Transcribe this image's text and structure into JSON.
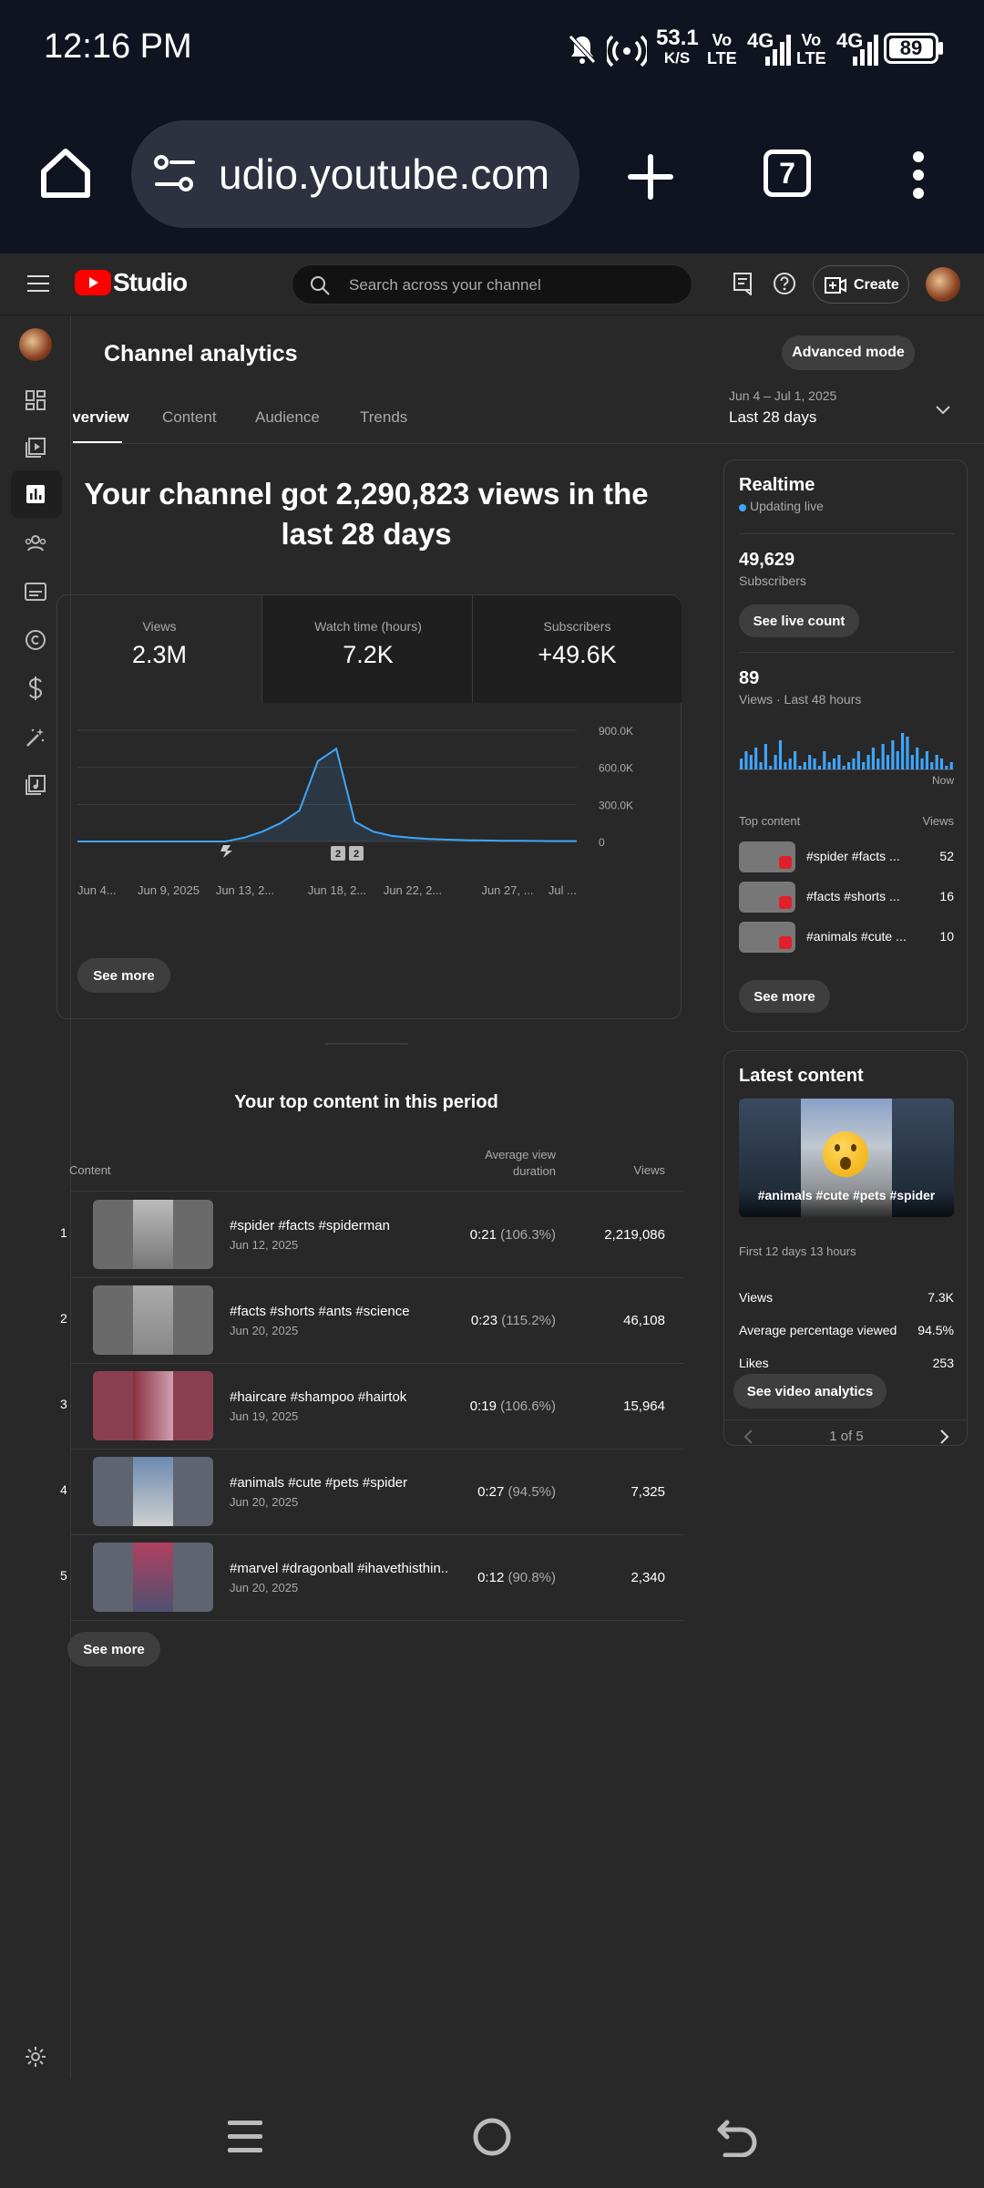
{
  "status_bar": {
    "time": "12:16 PM",
    "net_speed_value": "53.1",
    "net_speed_unit": "K/S",
    "battery": "89",
    "sim1_label": "Vo\nLTE",
    "sim2_label": "Vo\nLTE",
    "net1": "4G",
    "net2": "4G"
  },
  "browser": {
    "url": "udio.youtube.com",
    "tab_count": "7"
  },
  "header": {
    "logo_text": "Studio",
    "search_placeholder": "Search across your channel",
    "create_label": "Create"
  },
  "page": {
    "title": "Channel analytics",
    "advanced_mode_label": "Advanced mode",
    "tabs": [
      "Overview",
      "Content",
      "Audience",
      "Trends"
    ],
    "date_range": "Jun 4 – Jul 1, 2025",
    "date_label": "Last 28 days"
  },
  "summary": {
    "headline": "Your channel got 2,290,823 views in the last 28 days",
    "metrics": [
      {
        "label": "Views",
        "value": "2.3M"
      },
      {
        "label": "Watch time (hours)",
        "value": "7.2K"
      },
      {
        "label": "Subscribers",
        "value": "+49.6K"
      }
    ],
    "see_more": "See more"
  },
  "chart_data": {
    "type": "line",
    "x": [
      "Jun 4",
      "Jun 5",
      "Jun 6",
      "Jun 7",
      "Jun 8",
      "Jun 9",
      "Jun 10",
      "Jun 11",
      "Jun 12",
      "Jun 13",
      "Jun 14",
      "Jun 15",
      "Jun 16",
      "Jun 17",
      "Jun 18",
      "Jun 19",
      "Jun 20",
      "Jun 21",
      "Jun 22",
      "Jun 23",
      "Jun 24",
      "Jun 25",
      "Jun 26",
      "Jun 27",
      "Jun 28",
      "Jun 29",
      "Jun 30",
      "Jul 1"
    ],
    "values": [
      0,
      0,
      0,
      0,
      0,
      0,
      0,
      0,
      0,
      30000,
      80000,
      150000,
      250000,
      650000,
      750000,
      160000,
      80000,
      45000,
      30000,
      20000,
      15000,
      10000,
      8000,
      6000,
      5000,
      4000,
      3000,
      3000
    ],
    "xtick_labels": [
      "Jun 4...",
      "Jun 9, 2025",
      "Jun 13, 2...",
      "Jun 18, 2...",
      "Jun 22, 2...",
      "Jun 27, ...",
      "Jul ..."
    ],
    "yticks": [
      "900.0K",
      "600.0K",
      "300.0K",
      "0"
    ],
    "ylim": [
      0,
      900000
    ],
    "markers": [
      "2",
      "2"
    ]
  },
  "top_content": {
    "title": "Your top content in this period",
    "col_content": "Content",
    "col_avd": "Average view duration",
    "col_views": "Views",
    "rows": [
      {
        "rank": "1",
        "title": "#spider #facts #spiderman",
        "date": "Jun 12, 2025",
        "avd": "0:21",
        "pct": "(106.3%)",
        "views": "2,219,086"
      },
      {
        "rank": "2",
        "title": "#facts #shorts #ants #science",
        "date": "Jun 20, 2025",
        "avd": "0:23",
        "pct": "(115.2%)",
        "views": "46,108"
      },
      {
        "rank": "3",
        "title": "#haircare #shampoo #hairtok",
        "date": "Jun 19, 2025",
        "avd": "0:19",
        "pct": "(106.6%)",
        "views": "15,964"
      },
      {
        "rank": "4",
        "title": "#animals #cute #pets #spider",
        "date": "Jun 20, 2025",
        "avd": "0:27",
        "pct": "(94.5%)",
        "views": "7,325"
      },
      {
        "rank": "5",
        "title": "#marvel #dragonball #ihavethisthin...",
        "date": "Jun 20, 2025",
        "avd": "0:12",
        "pct": "(90.8%)",
        "views": "2,340"
      }
    ],
    "see_more": "See more"
  },
  "realtime": {
    "title": "Realtime",
    "status": "Updating live",
    "subs_value": "49,629",
    "subs_label": "Subscribers",
    "live_count_label": "See live count",
    "views_value": "89",
    "views_label": "Views · Last 48 hours",
    "now_label": "Now",
    "bars": [
      3,
      5,
      4,
      6,
      2,
      7,
      1,
      4,
      8,
      2,
      3,
      5,
      1,
      2,
      4,
      3,
      1,
      5,
      2,
      3,
      4,
      1,
      2,
      3,
      5,
      2,
      4,
      6,
      3,
      7,
      4,
      8,
      5,
      10,
      9,
      4,
      6,
      3,
      5,
      2,
      4,
      3,
      1,
      2
    ],
    "top_content_label": "Top content",
    "views_col_label": "Views",
    "items": [
      {
        "title": "#spider #facts ...",
        "views": "52"
      },
      {
        "title": "#facts #shorts ...",
        "views": "16"
      },
      {
        "title": "#animals #cute ...",
        "views": "10"
      }
    ],
    "see_more": "See more"
  },
  "latest": {
    "title": "Latest content",
    "video_title": "#animals #cute #pets #spider",
    "period": "First 12 days 13 hours",
    "stats": [
      {
        "label": "Views",
        "value": "7.3K"
      },
      {
        "label": "Average percentage viewed",
        "value": "94.5%"
      },
      {
        "label": "Likes",
        "value": "253"
      }
    ],
    "analytics_label": "See video analytics",
    "pager": "1 of 5"
  },
  "colors": {
    "accent_line": "#3ea6ff",
    "logo_red": "#ff0000",
    "bg": "#282828"
  }
}
